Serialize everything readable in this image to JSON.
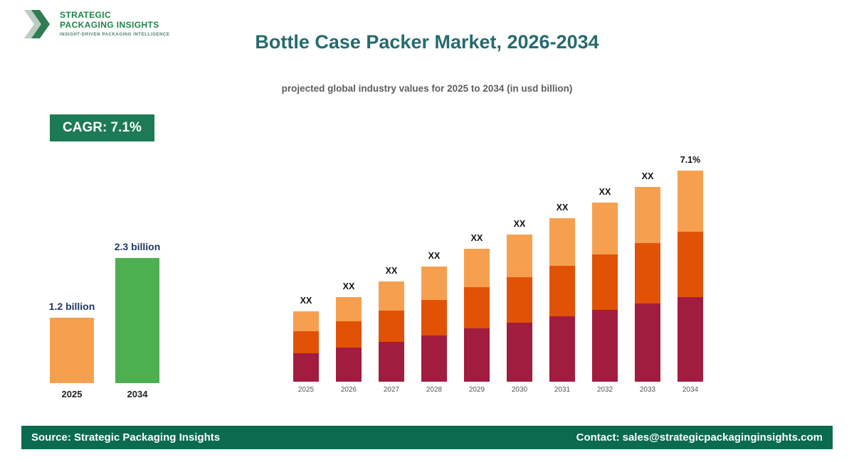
{
  "logo": {
    "line1": "STRATEGIC",
    "line2": "PACKAGING INSIGHTS",
    "tagline": "INSIGHT-DRIVEN PACKAGING INTELLIGENCE"
  },
  "header": {
    "title": "Bottle Case Packer Market, 2026-2034",
    "subtitle": "projected global industry values for 2025 to 2034 (in usd billion)"
  },
  "badge": {
    "label": "CAGR: 7.1%"
  },
  "footer": {
    "source": "Source: Strategic Packaging Insights",
    "contact": "Contact: sales@strategicpackaginginsights.com"
  },
  "colors": {
    "badge_bg": "#1d7a57",
    "footer_bg": "#0a6b4f",
    "title_text": "#266b6e",
    "logo_green": "#1e8449",
    "summary_orange": "#f6a04f",
    "summary_green": "#4caf50",
    "stack_bottom": "#a21c3f",
    "stack_middle": "#e25206",
    "stack_top": "#f6a04f"
  },
  "chart_data": [
    {
      "type": "bar",
      "title": "2025 vs 2034 market size",
      "categories": [
        "2025",
        "2034"
      ],
      "values": [
        1.2,
        2.3
      ],
      "bar_labels": [
        "1.2 billion",
        "2.3 billion"
      ],
      "colors": [
        "#f6a04f",
        "#4caf50"
      ],
      "ylabel": "usd billion",
      "ylim": [
        0,
        2.5
      ],
      "grid": false,
      "legend": "none"
    },
    {
      "type": "stacked-bar",
      "title": "projected values 2025-2034 (values masked as XX)",
      "categories": [
        "2025",
        "2026",
        "2027",
        "2028",
        "2029",
        "2030",
        "2031",
        "2032",
        "2033",
        "2034"
      ],
      "series": [
        {
          "name": "bottom",
          "color": "#a21c3f",
          "values": [
            40,
            48,
            56,
            65,
            75,
            83,
            92,
            101,
            110,
            119
          ]
        },
        {
          "name": "middle",
          "color": "#e25206",
          "values": [
            31,
            37,
            44,
            50,
            58,
            64,
            71,
            78,
            85,
            92
          ]
        },
        {
          "name": "top",
          "color": "#f6a04f",
          "values": [
            28,
            34,
            41,
            47,
            54,
            60,
            67,
            73,
            79,
            86
          ]
        }
      ],
      "bar_labels": [
        "XX",
        "XX",
        "XX",
        "XX",
        "XX",
        "XX",
        "XX",
        "XX",
        "XX",
        "7.1%"
      ],
      "grid": false,
      "legend": "none"
    }
  ]
}
